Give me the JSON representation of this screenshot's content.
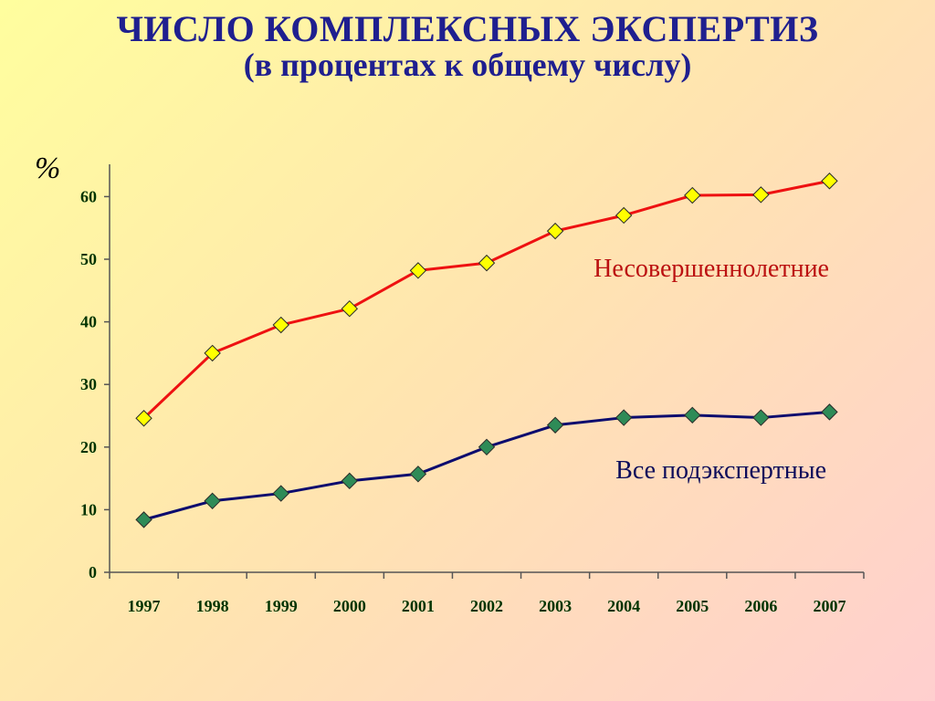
{
  "title": {
    "line1": "ЧИСЛО КОМПЛЕКСНЫХ ЭКСПЕРТИЗ",
    "line2": "(в процентах к общему числу)"
  },
  "chart_data": {
    "type": "line",
    "title": "ЧИСЛО КОМПЛЕКСНЫХ ЭКСПЕРТИЗ (в процентах к общему числу)",
    "ylabel": "%",
    "xlabel": "",
    "x": [
      "1997",
      "1998",
      "1999",
      "2000",
      "2001",
      "2002",
      "2003",
      "2004",
      "2005",
      "2006",
      "2007"
    ],
    "yticks": [
      0,
      10,
      20,
      30,
      40,
      50,
      60
    ],
    "ylim": [
      0,
      65
    ],
    "grid": false,
    "legend": "inline labels",
    "series": [
      {
        "name": "Несовершеннолетние",
        "values": [
          24.6,
          35.0,
          39.5,
          42.1,
          48.2,
          49.4,
          54.5,
          57.0,
          60.2,
          60.3,
          62.5
        ],
        "line_color": "#ee1111",
        "marker_color": "#ffff00",
        "label_color": "#bb1111"
      },
      {
        "name": "Все подэкспертные",
        "values": [
          8.4,
          11.4,
          12.6,
          14.6,
          15.7,
          20.0,
          23.5,
          24.7,
          25.1,
          24.7,
          25.6
        ],
        "line_color": "#0c0c6e",
        "marker_color": "#2e8b57",
        "label_color": "#0c0c5a"
      }
    ]
  }
}
